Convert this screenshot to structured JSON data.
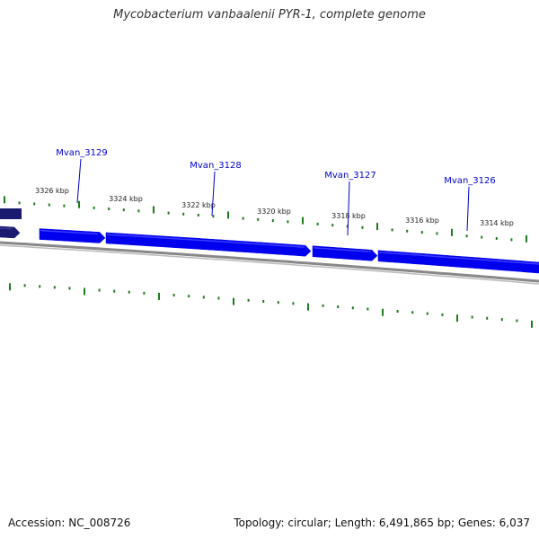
{
  "title": "Mycobacterium vanbaalenii PYR-1, complete genome",
  "footer": {
    "accession": "Accession: NC_008726",
    "summary": "Topology: circular; Length: 6,491,865 bp; Genes: 6,037"
  },
  "colors": {
    "gene_fill": "#0000ee",
    "gene_highlight": "#3b3bff",
    "gene_dark": "#1a1a70",
    "backbone": "#888888",
    "tick": "#1f7a1f",
    "gene_label": "#0000cc"
  },
  "scale": {
    "unit": "kbp",
    "labels": [
      "3326 kbp",
      "3324 kbp",
      "3322 kbp",
      "3320 kbp",
      "3318 kbp",
      "3316 kbp",
      "3314 kbp"
    ]
  },
  "genes": [
    {
      "name": "Mvan_3129"
    },
    {
      "name": "Mvan_3128"
    },
    {
      "name": "Mvan_3127"
    },
    {
      "name": "Mvan_3126"
    }
  ]
}
